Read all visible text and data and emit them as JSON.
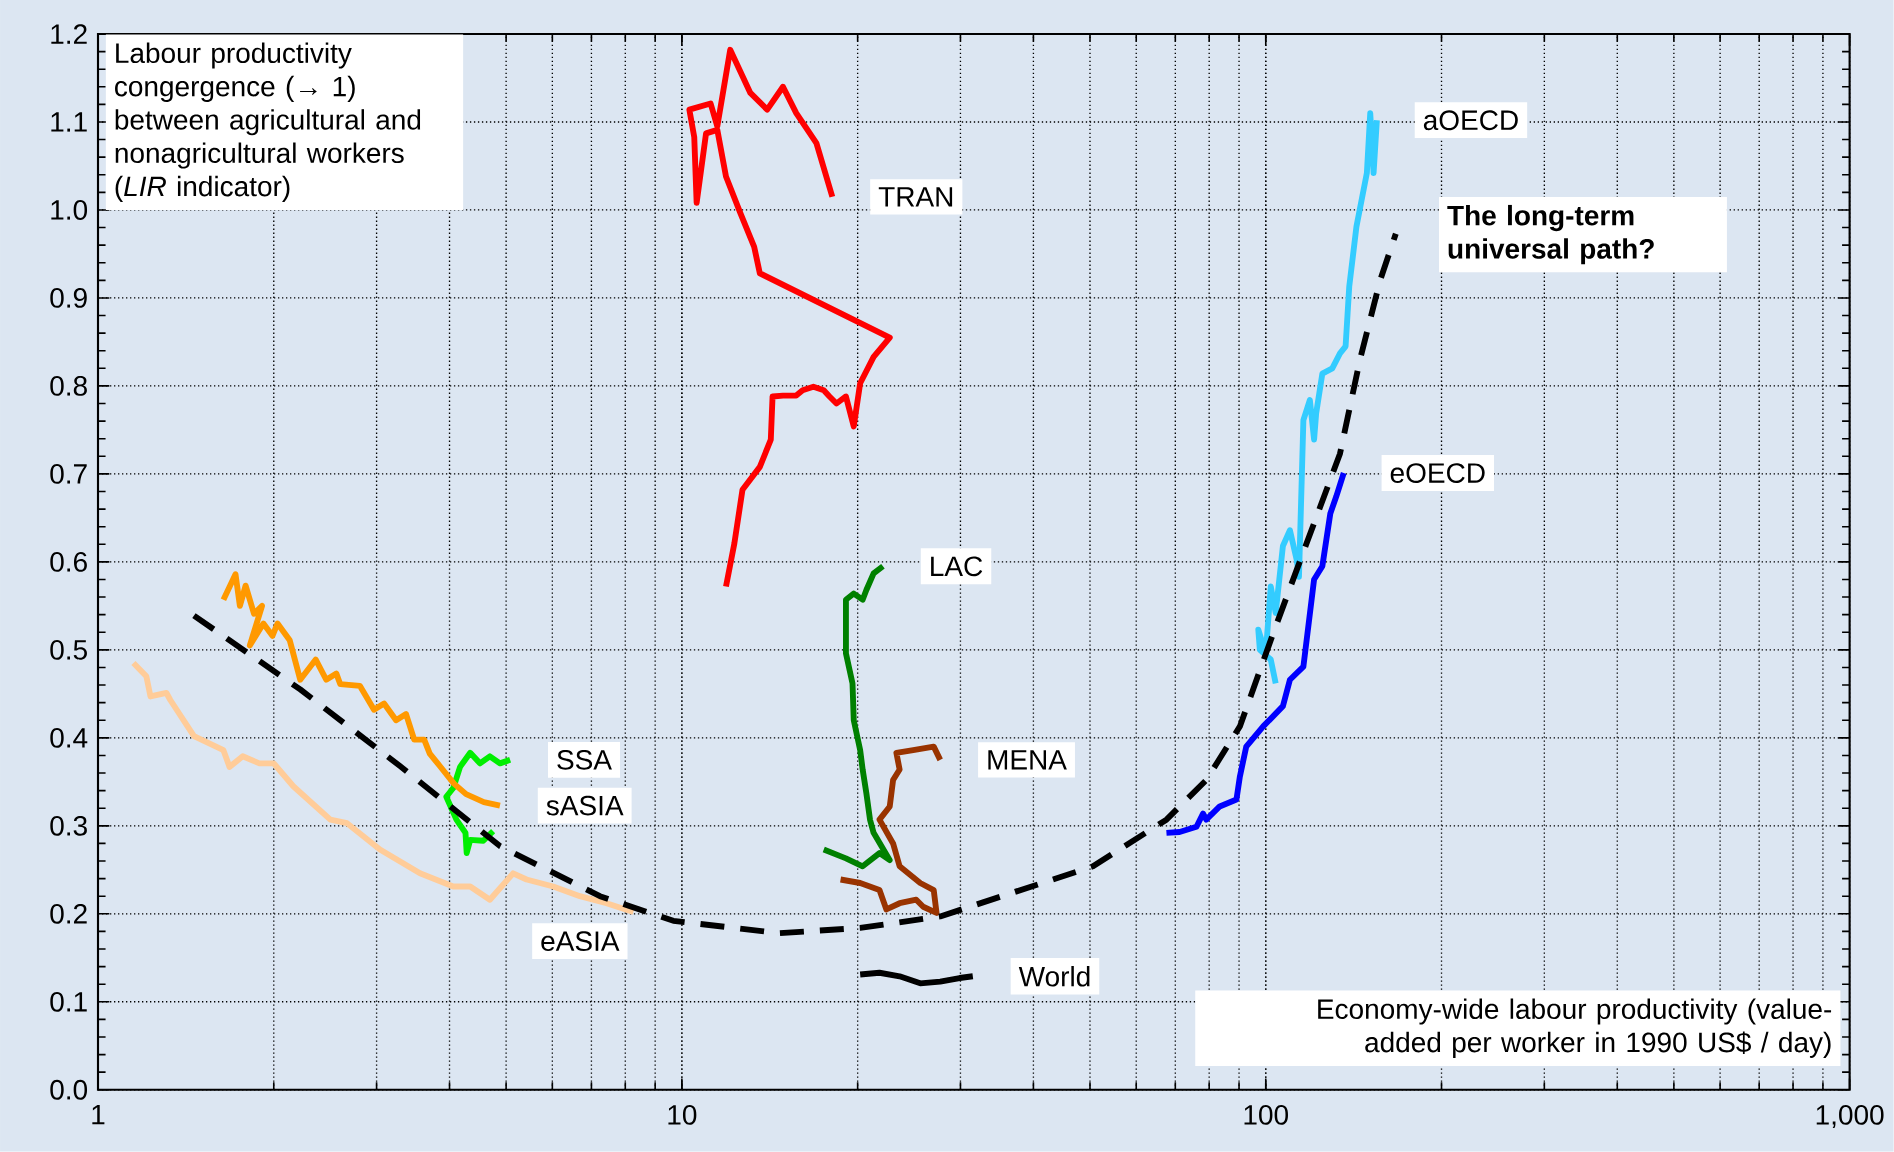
{
  "chart_data": {
    "type": "line",
    "log": "x",
    "grid": true,
    "marker": "none",
    "line_style": "solid",
    "ylabel": "Labour productivity congergence (→ 1) between agricultural and nonagricultural workers (*LIR* indicator)",
    "xlabel": "Economy-wide labour productivity (value-added per worker in 1990 US$ / day)",
    "xlim": [
      1,
      1000
    ],
    "ylim": [
      0,
      1.2
    ],
    "xticks": [
      1,
      10,
      100,
      {
        "value": 1000,
        "label": "1,000"
      }
    ],
    "yticks": [
      {
        "value": 0,
        "label": "0.0"
      },
      0.1,
      0.2,
      0.3,
      0.4,
      0.5,
      0.6,
      0.7,
      0.8,
      0.9,
      {
        "value": 1,
        "label": "1.0"
      },
      1.1,
      1.2
    ],
    "series": [
      {
        "name": "TRAN",
        "color": "#ff0000",
        "x": [
          11.9,
          12.3,
          12.7,
          13.6,
          14.2,
          14.3,
          14.9,
          15.7,
          16.1,
          16.8,
          17.5,
          17.9,
          18.4,
          19.1,
          19.7,
          20.2,
          21.3,
          22.7,
          13.6,
          13.3,
          12.6,
          11.9,
          11.5,
          11.0,
          10.6,
          10.5,
          10.3,
          11.2,
          11.5,
          12.1,
          13.1,
          14.0,
          14.9,
          15.7,
          17.0,
          18.1
        ],
        "values": [
          0.572,
          0.621,
          0.682,
          0.708,
          0.739,
          0.788,
          0.789,
          0.789,
          0.795,
          0.799,
          0.795,
          0.788,
          0.78,
          0.788,
          0.754,
          0.803,
          0.833,
          0.855,
          0.928,
          0.958,
          0.996,
          1.038,
          1.091,
          1.087,
          1.008,
          1.083,
          1.114,
          1.121,
          1.095,
          1.182,
          1.133,
          1.114,
          1.14,
          1.11,
          1.076,
          1.015
        ]
      },
      {
        "name": "aOECD",
        "color": "#33ccff",
        "x": [
          104,
          102,
          97.7,
          97.1,
          100,
          102,
          104,
          107,
          110,
          113,
          114,
          116,
          119,
          121,
          122,
          125,
          130,
          134,
          137,
          139,
          143,
          149,
          151,
          153,
          155
        ],
        "values": [
          0.462,
          0.489,
          0.5,
          0.523,
          0.496,
          0.572,
          0.542,
          0.618,
          0.636,
          0.602,
          0.583,
          0.761,
          0.784,
          0.739,
          0.769,
          0.814,
          0.82,
          0.837,
          0.845,
          0.913,
          0.981,
          1.042,
          1.11,
          1.042,
          1.102
        ]
      },
      {
        "name": "eOECD",
        "color": "#0000ff",
        "x": [
          67.6,
          71.2,
          76.1,
          78.1,
          79.1,
          83.4,
          89.1,
          90.3,
          92.6,
          99.0,
          107,
          110,
          116,
          121,
          125,
          129,
          132,
          136
        ],
        "values": [
          0.292,
          0.293,
          0.299,
          0.314,
          0.307,
          0.322,
          0.33,
          0.356,
          0.39,
          0.413,
          0.436,
          0.466,
          0.481,
          0.58,
          0.595,
          0.655,
          0.674,
          0.701
        ]
      },
      {
        "name": "LAC",
        "color": "#008000",
        "x": [
          17.5,
          19.1,
          20.4,
          21.8,
          22.7,
          21.3,
          21.0,
          20.7,
          20.4,
          20.2,
          19.7,
          19.6,
          19.1,
          19.1,
          19.7,
          20.4,
          20.7,
          21.3,
          22.1
        ],
        "values": [
          0.273,
          0.263,
          0.254,
          0.269,
          0.261,
          0.292,
          0.307,
          0.337,
          0.364,
          0.386,
          0.42,
          0.462,
          0.496,
          0.557,
          0.564,
          0.557,
          0.568,
          0.587,
          0.595
        ]
      },
      {
        "name": "MENA",
        "color": "#993300",
        "x": [
          18.7,
          20.2,
          21.8,
          22.4,
          23.6,
          25.2,
          25.9,
          27.3,
          27.0,
          25.6,
          23.6,
          23.0,
          21.8,
          22.7,
          23.0,
          23.6,
          23.3,
          24.9,
          27.0,
          27.7
        ],
        "values": [
          0.239,
          0.235,
          0.227,
          0.205,
          0.212,
          0.216,
          0.208,
          0.201,
          0.227,
          0.235,
          0.254,
          0.28,
          0.307,
          0.322,
          0.352,
          0.364,
          0.383,
          0.386,
          0.39,
          0.375
        ]
      },
      {
        "name": "SSA",
        "color": "#00ee00",
        "x": [
          4.75,
          4.57,
          4.34,
          4.28,
          4.26,
          4.11,
          3.95,
          4.06,
          4.17,
          4.34,
          4.51,
          4.69,
          4.88,
          5.08
        ],
        "values": [
          0.294,
          0.283,
          0.284,
          0.269,
          0.292,
          0.307,
          0.333,
          0.343,
          0.367,
          0.383,
          0.371,
          0.379,
          0.371,
          0.375
        ]
      },
      {
        "name": "sASIA",
        "color": "#ff9900",
        "x": [
          1.64,
          1.72,
          1.75,
          1.79,
          1.85,
          1.91,
          1.82,
          1.92,
          1.99,
          2.03,
          2.13,
          2.22,
          2.36,
          2.46,
          2.56,
          2.6,
          2.81,
          2.97,
          3.09,
          3.24,
          3.37,
          3.48,
          3.62,
          3.7,
          3.85,
          4.07,
          4.27,
          4.58,
          4.88
        ],
        "values": [
          0.557,
          0.586,
          0.55,
          0.573,
          0.541,
          0.55,
          0.505,
          0.53,
          0.516,
          0.53,
          0.511,
          0.466,
          0.489,
          0.466,
          0.473,
          0.461,
          0.459,
          0.432,
          0.439,
          0.42,
          0.427,
          0.398,
          0.398,
          0.382,
          0.368,
          0.348,
          0.336,
          0.327,
          0.323
        ]
      },
      {
        "name": "eASIA",
        "color": "#ffcc99",
        "x": [
          1.15,
          1.21,
          1.23,
          1.31,
          1.33,
          1.46,
          1.64,
          1.68,
          1.77,
          1.89,
          2.0,
          2.16,
          2.5,
          2.67,
          3.04,
          3.56,
          4.06,
          4.34,
          4.69,
          5.14,
          5.42,
          6.02,
          6.69,
          7.43,
          8.26
        ],
        "values": [
          0.485,
          0.47,
          0.447,
          0.451,
          0.443,
          0.402,
          0.386,
          0.367,
          0.379,
          0.371,
          0.371,
          0.345,
          0.307,
          0.303,
          0.273,
          0.246,
          0.231,
          0.231,
          0.216,
          0.246,
          0.239,
          0.231,
          0.22,
          0.212,
          0.202
        ]
      },
      {
        "name": "World",
        "color": "#000000",
        "x": [
          20.2,
          21.8,
          23.6,
          25.6,
          27.7,
          29.9,
          31.5
        ],
        "values": [
          0.131,
          0.133,
          0.129,
          0.121,
          0.123,
          0.127,
          0.129
        ]
      },
      {
        "name": "The long-term universal path?",
        "color": "#000000",
        "line_style": "dashed",
        "x": [
          1.46,
          2.22,
          3.29,
          4.88,
          7.24,
          9.67,
          14.7,
          20.2,
          27.7,
          50.6,
          67.6,
          79.1,
          90.3,
          103,
          117,
          134,
          145,
          157,
          167
        ],
        "values": [
          0.539,
          0.455,
          0.368,
          0.277,
          0.22,
          0.192,
          0.178,
          0.184,
          0.197,
          0.254,
          0.307,
          0.352,
          0.413,
          0.519,
          0.618,
          0.723,
          0.83,
          0.92,
          0.973
        ]
      }
    ]
  }
}
